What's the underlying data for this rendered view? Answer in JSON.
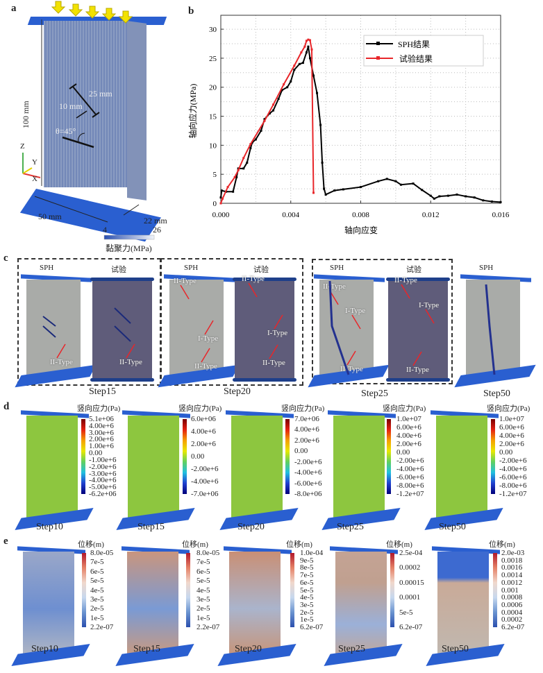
{
  "panel_a": {
    "label": "a",
    "height_dim": "100 mm",
    "flaw_length": "25 mm",
    "flaw_spacing": "10 mm",
    "angle": "θ=45°",
    "axes": {
      "z": "Z",
      "y": "Y",
      "x": "X"
    },
    "width_dim": "50 mm",
    "depth_dim": "22 mm",
    "colorbar": {
      "min": "4",
      "max": "26",
      "title": "黏聚力(MPa)"
    },
    "colors": {
      "plate": "#2a5fd0",
      "arrow": "#f2e200",
      "body": "#7d8fb5"
    }
  },
  "panel_b": {
    "label": "b"
  },
  "chart_data": {
    "type": "line",
    "xlabel": "轴向应变",
    "ylabel": "轴向应力(MPa)",
    "xlim": [
      0,
      0.016
    ],
    "ylim": [
      0,
      32.4
    ],
    "xticks": [
      "0.000",
      "0.004",
      "0.008",
      "0.012",
      "0.016"
    ],
    "xtick_values": [
      0,
      0.004,
      0.008,
      0.012,
      0.016
    ],
    "yticks": [
      "0",
      "5",
      "10",
      "15",
      "20",
      "25",
      "30"
    ],
    "ytick_values": [
      0,
      5,
      10,
      15,
      20,
      25,
      30
    ],
    "grid": true,
    "legend_position": "top-right",
    "series": [
      {
        "name": "SPH结果",
        "color": "#000000",
        "x": [
          0,
          5e-05,
          0.0003,
          0.0007,
          0.0009,
          0.001,
          0.0013,
          0.0015,
          0.0017,
          0.0018,
          0.002,
          0.0023,
          0.0025,
          0.0028,
          0.003,
          0.0033,
          0.0035,
          0.0038,
          0.004,
          0.0042,
          0.0045,
          0.0047,
          0.0049,
          0.005,
          0.0051,
          0.0053,
          0.0055,
          0.0057,
          0.0058,
          0.0059,
          0.006,
          0.0065,
          0.007,
          0.008,
          0.009,
          0.0095,
          0.01,
          0.0103,
          0.011,
          0.0115,
          0.012,
          0.0122,
          0.0125,
          0.013,
          0.0135,
          0.014,
          0.0145,
          0.015,
          0.0155,
          0.016
        ],
        "y": [
          1,
          2.2,
          2,
          2,
          4.5,
          6,
          6,
          7,
          9.5,
          10.5,
          11,
          12.5,
          14.5,
          15.5,
          16,
          18,
          19.5,
          20,
          21,
          23,
          24,
          24.2,
          26,
          27,
          25,
          22,
          19,
          13.5,
          7,
          2.5,
          1.5,
          2.2,
          2.4,
          2.8,
          3.8,
          4.2,
          3.8,
          3.2,
          3.4,
          2.3,
          1.3,
          0.8,
          1.2,
          1.3,
          1.5,
          1.2,
          1.0,
          0.5,
          0.3,
          0.2
        ]
      },
      {
        "name": "试验结果",
        "color": "#e8262a",
        "x": [
          0,
          0.0001,
          0.0004,
          0.0008,
          0.001,
          0.0013,
          0.0017,
          0.0025,
          0.003,
          0.0036,
          0.0042,
          0.0046,
          0.0048,
          0.0049,
          0.005,
          0.0051,
          0.0052,
          0.0053
        ],
        "y": [
          0,
          0.8,
          2.8,
          4.5,
          5.7,
          7.8,
          10.2,
          14.2,
          17,
          20.5,
          23.7,
          26,
          27,
          28,
          28.2,
          28.1,
          26.5,
          1.8
        ]
      }
    ]
  },
  "panel_c": {
    "label": "c",
    "specimens": [
      {
        "title": "SPH",
        "annotations": [
          "II-Type"
        ]
      },
      {
        "title": "试验",
        "annotations": [
          "II-Type"
        ]
      },
      {
        "title": "SPH",
        "annotations": [
          "II-Type",
          "I-Type",
          "II-Type"
        ]
      },
      {
        "title": "试验",
        "annotations": [
          "II-Type",
          "I-Type",
          "II-Type"
        ]
      },
      {
        "title": "SPH",
        "annotations": [
          "II-Type",
          "I-Type",
          "II-Type"
        ]
      },
      {
        "title": "试验",
        "annotations": [
          "II-Type",
          "I-Type",
          "II-Type"
        ]
      },
      {
        "title": "SPH",
        "annotations": []
      }
    ],
    "steps": [
      "Step15",
      "Step20",
      "Step25",
      "Step50"
    ]
  },
  "panel_d": {
    "label": "d",
    "colorbar_title": "竖向应力(Pa)",
    "items": [
      {
        "step": "Step10",
        "ticks": [
          "5.1e+06",
          "4.00e+6",
          "3.00e+6",
          "2.00e+6",
          "1.00e+6",
          "0.00",
          "-1.00e+6",
          "-2.00e+6",
          "-3.00e+6",
          "-4.00e+6",
          "-5.00e+6",
          "-6.2e+06"
        ]
      },
      {
        "step": "Step15",
        "ticks": [
          "6.0e+06",
          "4.00e+6",
          "2.00e+6",
          "0.00",
          "-2.00e+6",
          "-4.00e+6",
          "-7.0e+06"
        ]
      },
      {
        "step": "Step20",
        "ticks": [
          "7.0e+06",
          "4.00e+6",
          "2.00e+6",
          "0.00",
          "-2.00e+6",
          "-4.00e+6",
          "-6.00e+6",
          "-8.0e+06"
        ]
      },
      {
        "step": "Step25",
        "ticks": [
          "1.0e+07",
          "6.00e+6",
          "4.00e+6",
          "2.00e+6",
          "0.00",
          "-2.00e+6",
          "-4.00e+6",
          "-6.00e+6",
          "-8.00e+6",
          "-1.2e+07"
        ]
      },
      {
        "step": "Step50",
        "ticks": [
          "1.0e+07",
          "6.00e+6",
          "4.00e+6",
          "2.00e+6",
          "0.00",
          "-2.00e+6",
          "-4.00e+6",
          "-6.00e+6",
          "-8.00e+6",
          "-1.2e+07"
        ]
      }
    ]
  },
  "panel_e": {
    "label": "e",
    "colorbar_title": "位移(m)",
    "items": [
      {
        "step": "Step10",
        "ticks": [
          "8.0e-05",
          "7e-5",
          "6e-5",
          "5e-5",
          "4e-5",
          "3e-5",
          "2e-5",
          "1e-5",
          "2.2e-07"
        ]
      },
      {
        "step": "Step15",
        "ticks": [
          "8.0e-05",
          "7e-5",
          "6e-5",
          "5e-5",
          "4e-5",
          "3e-5",
          "2e-5",
          "1e-5",
          "2.2e-07"
        ]
      },
      {
        "step": "Step20",
        "ticks": [
          "1.0e-04",
          "9e-5",
          "8e-5",
          "7e-5",
          "6e-5",
          "5e-5",
          "4e-5",
          "3e-5",
          "2e-5",
          "1e-5",
          "6.2e-07"
        ]
      },
      {
        "step": "Step25",
        "ticks": [
          "2.5e-04",
          "0.0002",
          "0.00015",
          "0.0001",
          "5e-5",
          "6.2e-07"
        ]
      },
      {
        "step": "Step50",
        "ticks": [
          "2.0e-03",
          "0.0018",
          "0.0016",
          "0.0014",
          "0.0012",
          "0.001",
          "0.0008",
          "0.0006",
          "0.0004",
          "0.0002",
          "6.2e-07"
        ]
      }
    ]
  }
}
